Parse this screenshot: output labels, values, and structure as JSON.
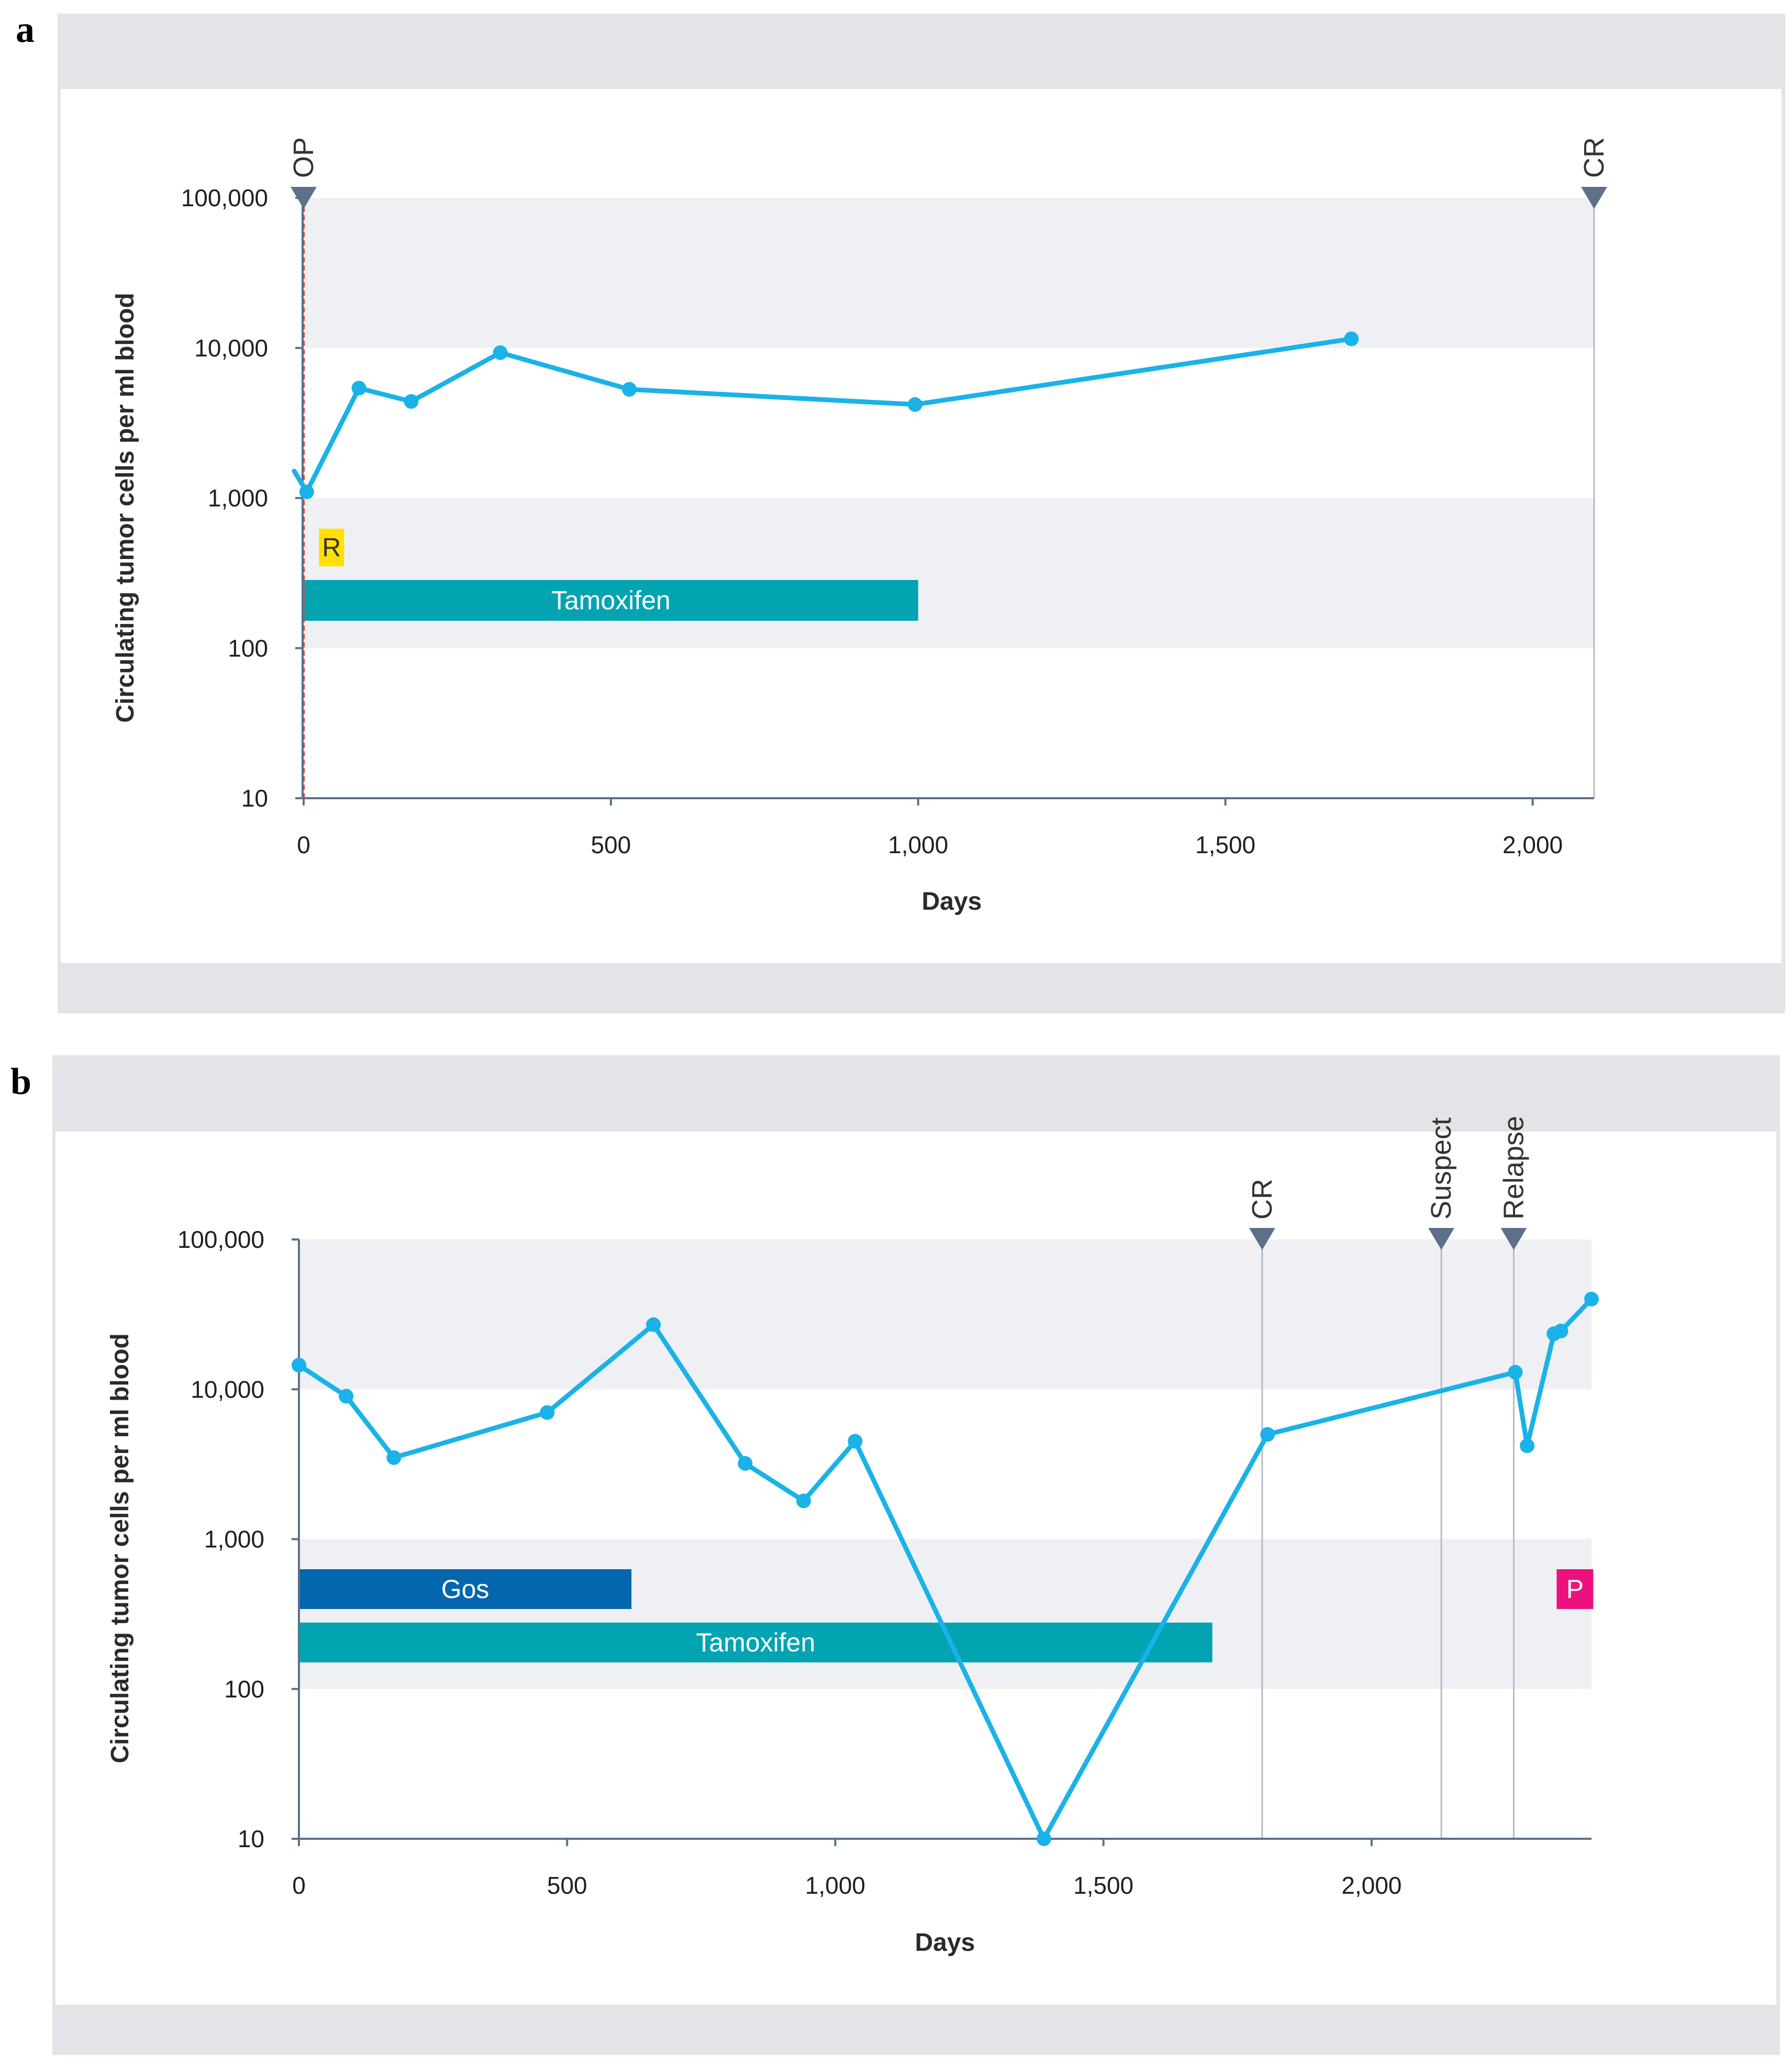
{
  "panels": [
    {
      "label": "a",
      "chart_data": {
        "type": "line",
        "title": "",
        "xlabel": "Days",
        "ylabel": "Circulating tumor cells per ml blood",
        "yscale": "log",
        "xlim": [
          0,
          2100
        ],
        "ylim": [
          10,
          100000
        ],
        "xticks": [
          0,
          500,
          1000,
          1500,
          2000
        ],
        "xtick_labels": [
          "0",
          "500",
          "1,000",
          "1,500",
          "2,000"
        ],
        "yticks": [
          10,
          100,
          1000,
          10000,
          100000
        ],
        "ytick_labels": [
          "10",
          "100",
          "1,000",
          "10,000",
          "100,000"
        ],
        "series": [
          {
            "name": "CTC",
            "color": "#1ab2e8",
            "x": [
              5,
              90,
              175,
              320,
              530,
              995,
              1705
            ],
            "y": [
              1100,
              5400,
              4400,
              9300,
              5300,
              4200,
              11500
            ]
          }
        ],
        "events": [
          {
            "label": "OP",
            "day": 0,
            "line_color": "#e0403a"
          },
          {
            "label": "CR",
            "day": 2100,
            "line_color": "#b5bcc4"
          }
        ],
        "therapies": [
          {
            "label": "Tamoxifen",
            "start": 0,
            "end": 1000,
            "color": "#02a4b2"
          }
        ],
        "tags": [
          {
            "label": "R",
            "day": 25,
            "color": "#ffe000",
            "text_color": "#333333"
          }
        ]
      }
    },
    {
      "label": "b",
      "chart_data": {
        "type": "line",
        "title": "",
        "xlabel": "Days",
        "ylabel": "Circulating tumor cells per ml blood",
        "yscale": "log",
        "xlim": [
          0,
          2410
        ],
        "ylim": [
          10,
          100000
        ],
        "xticks": [
          0,
          500,
          1000,
          1500,
          2000
        ],
        "xtick_labels": [
          "0",
          "500",
          "1,000",
          "1,500",
          "2,000"
        ],
        "yticks": [
          10,
          100,
          1000,
          10000,
          100000
        ],
        "ytick_labels": [
          "10",
          "100",
          "1,000",
          "10,000",
          "100,000"
        ],
        "series": [
          {
            "name": "CTC",
            "color": "#1ab2e8",
            "x": [
              0,
              88,
              177,
              463,
              661,
              832,
              941,
              1037,
              1389,
              1806,
              2268,
              2290,
              2340,
              2353,
              2410
            ],
            "y": [
              14500,
              9000,
              3500,
              7000,
              27000,
              3200,
              1800,
              4500,
              10,
              5000,
              13000,
              4200,
              23500,
              24500,
              40000
            ]
          }
        ],
        "events": [
          {
            "label": "CR",
            "day": 1796,
            "line_color": "#b5bcc4"
          },
          {
            "label": "Suspect",
            "day": 2130,
            "line_color": "#b5bcc4"
          },
          {
            "label": "Relapse",
            "day": 2265,
            "line_color": "#b5bcc4"
          }
        ],
        "therapies": [
          {
            "label": "Gos",
            "start": 0,
            "end": 620,
            "color": "#0466ad"
          },
          {
            "label": "Tamoxifen",
            "start": 0,
            "end": 1703,
            "color": "#02a4b2"
          }
        ],
        "tags": [
          {
            "label": "P",
            "day": 2345,
            "color": "#ec127e",
            "text_color": "#ffffff"
          }
        ]
      }
    }
  ]
}
